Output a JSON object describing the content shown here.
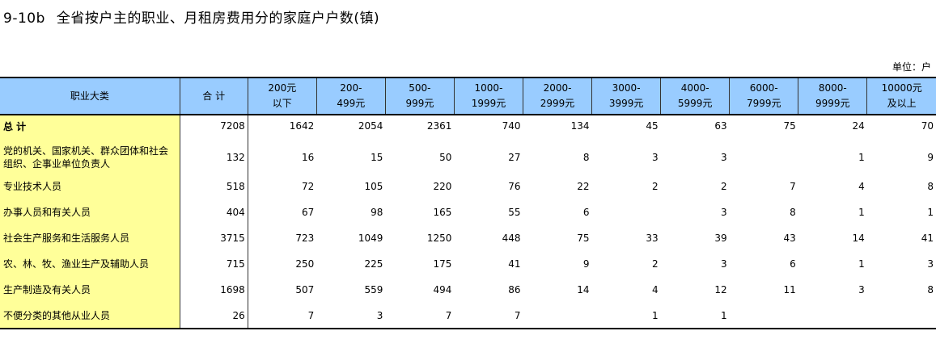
{
  "title": {
    "code": "9-10b",
    "text": "全省按户主的职业、月租房费用分的家庭户户数(镇)"
  },
  "unit": "单位：户",
  "table": {
    "headers": [
      [
        "职业大类"
      ],
      [
        "合  计"
      ],
      [
        "200元",
        "以下"
      ],
      [
        "200-",
        "499元"
      ],
      [
        "500-",
        "999元"
      ],
      [
        "1000-",
        "1999元"
      ],
      [
        "2000-",
        "2999元"
      ],
      [
        "3000-",
        "3999元"
      ],
      [
        "4000-",
        "5999元"
      ],
      [
        "6000-",
        "7999元"
      ],
      [
        "8000-",
        "9999元"
      ],
      [
        "10000元",
        "及以上"
      ]
    ],
    "rows": [
      {
        "label": "总  计",
        "values": [
          "7208",
          "1642",
          "2054",
          "2361",
          "740",
          "134",
          "45",
          "63",
          "75",
          "24",
          "70"
        ]
      },
      {
        "label": "党的机关、国家机关、群众团体和社会组织、企事业单位负责人",
        "values": [
          "132",
          "16",
          "15",
          "50",
          "27",
          "8",
          "3",
          "3",
          "",
          "1",
          "9"
        ]
      },
      {
        "label": "专业技术人员",
        "values": [
          "518",
          "72",
          "105",
          "220",
          "76",
          "22",
          "2",
          "2",
          "7",
          "4",
          "8"
        ]
      },
      {
        "label": "办事人员和有关人员",
        "values": [
          "404",
          "67",
          "98",
          "165",
          "55",
          "6",
          "",
          "3",
          "8",
          "1",
          "1"
        ]
      },
      {
        "label": "社会生产服务和生活服务人员",
        "values": [
          "3715",
          "723",
          "1049",
          "1250",
          "448",
          "75",
          "33",
          "39",
          "43",
          "14",
          "41"
        ]
      },
      {
        "label": "农、林、牧、渔业生产及辅助人员",
        "values": [
          "715",
          "250",
          "225",
          "175",
          "41",
          "9",
          "2",
          "3",
          "6",
          "1",
          "3"
        ]
      },
      {
        "label": "生产制造及有关人员",
        "values": [
          "1698",
          "507",
          "559",
          "494",
          "86",
          "14",
          "4",
          "12",
          "11",
          "3",
          "8"
        ]
      },
      {
        "label": "不便分类的其他从业人员",
        "values": [
          "26",
          "7",
          "3",
          "7",
          "7",
          "",
          "1",
          "1",
          "",
          "",
          ""
        ]
      }
    ]
  }
}
